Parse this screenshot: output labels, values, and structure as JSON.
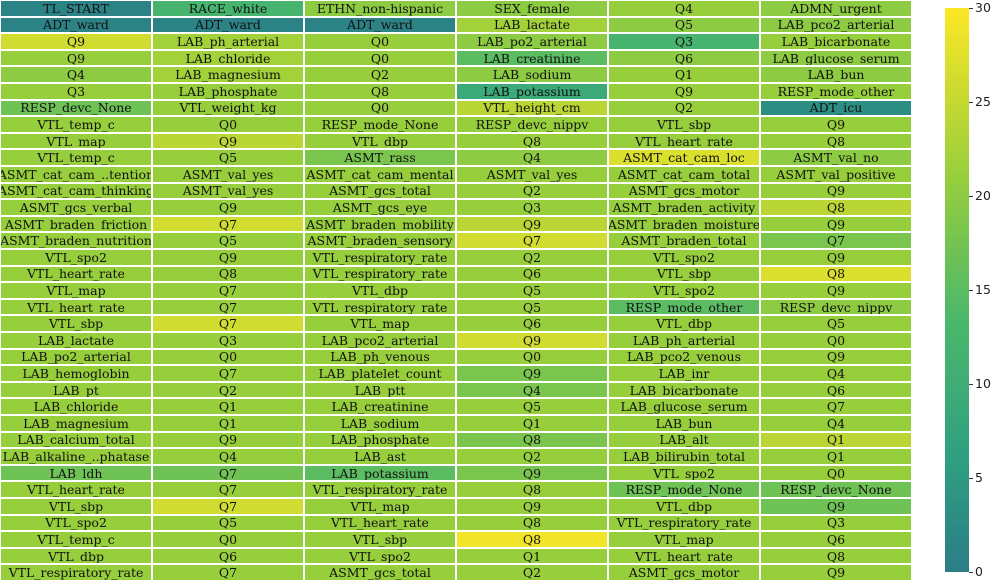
{
  "chart_data": {
    "type": "heatmap",
    "title": "",
    "colormap": "viridis-like (teal to yellow)",
    "colorbar": {
      "min": 0,
      "max": 30,
      "ticks": [
        0,
        5,
        10,
        15,
        20,
        25,
        30
      ]
    },
    "grid": {
      "columns": 6,
      "rows": 35
    },
    "rows": [
      {
        "labels": [
          "TL_START",
          "RACE_white",
          "ETHN_non-hispanic",
          "SEX_female",
          "Q4",
          "ADMN_urgent"
        ],
        "values": [
          1,
          12,
          20,
          20,
          21,
          20
        ]
      },
      {
        "labels": [
          "ADT_ward",
          "ADT_ward",
          "ADT_ward",
          "LAB_lactate",
          "Q5",
          "LAB_pco2_arterial"
        ],
        "values": [
          1,
          1,
          1,
          22,
          20,
          20
        ]
      },
      {
        "labels": [
          "Q9",
          "LAB_ph_arterial",
          "Q0",
          "LAB_po2_arterial",
          "Q3",
          "LAB_bicarbonate"
        ],
        "values": [
          26,
          22,
          21,
          20,
          12,
          21
        ]
      },
      {
        "labels": [
          "Q9",
          "LAB_chloride",
          "Q0",
          "LAB_creatinine",
          "Q6",
          "LAB_glucose_serum"
        ],
        "values": [
          21,
          22,
          21,
          15,
          20,
          20
        ]
      },
      {
        "labels": [
          "Q4",
          "LAB_magnesium",
          "Q2",
          "LAB_sodium",
          "Q1",
          "LAB_bun"
        ],
        "values": [
          20,
          22,
          21,
          20,
          21,
          20
        ]
      },
      {
        "labels": [
          "Q3",
          "LAB_phosphate",
          "Q8",
          "LAB_potassium",
          "Q9",
          "RESP_mode_other"
        ],
        "values": [
          21,
          21,
          21,
          9,
          21,
          21
        ]
      },
      {
        "labels": [
          "RESP_devc_None",
          "VTL_weight_kg",
          "Q0",
          "VTL_height_cm",
          "Q2",
          "ADT_icu"
        ],
        "values": [
          17,
          21,
          21,
          24,
          21,
          3
        ]
      },
      {
        "labels": [
          "VTL_temp_c",
          "Q0",
          "RESP_mode_None",
          "RESP_devc_nippv",
          "VTL_sbp",
          "Q9"
        ],
        "values": [
          21,
          21,
          21,
          21,
          21,
          21
        ]
      },
      {
        "labels": [
          "VTL_map",
          "Q9",
          "VTL_dbp",
          "Q8",
          "VTL_heart_rate",
          "Q8"
        ],
        "values": [
          21,
          24,
          21,
          21,
          21,
          21
        ]
      },
      {
        "labels": [
          "VTL_temp_c",
          "Q5",
          "ASMT_rass",
          "Q4",
          "ASMT_cat_cam_loc",
          "ASMT_val_no"
        ],
        "values": [
          21,
          21,
          18,
          20,
          27,
          20
        ]
      },
      {
        "labels": [
          "ASMT_cat_cam_..tention",
          "ASMT_val_yes",
          "ASMT_cat_cam_mental",
          "ASMT_val_yes",
          "ASMT_cat_cam_total",
          "ASMT_val_positive"
        ],
        "values": [
          21,
          21,
          21,
          21,
          21,
          21
        ]
      },
      {
        "labels": [
          "ASMT_cat_cam_thinking",
          "ASMT_val_yes",
          "ASMT_gcs_total",
          "Q2",
          "ASMT_gcs_motor",
          "Q9"
        ],
        "values": [
          21,
          21,
          21,
          21,
          21,
          21
        ]
      },
      {
        "labels": [
          "ASMT_gcs_verbal",
          "Q9",
          "ASMT_gcs_eye",
          "Q3",
          "ASMT_braden_activity",
          "Q8"
        ],
        "values": [
          21,
          21,
          21,
          21,
          21,
          24
        ]
      },
      {
        "labels": [
          "ASMT_braden_friction",
          "Q7",
          "ASMT_braden_mobility",
          "Q9",
          "ASMT_braden_moisture",
          "Q9"
        ],
        "values": [
          21,
          26,
          21,
          24,
          21,
          21
        ]
      },
      {
        "labels": [
          "ASMT_braden_nutrition",
          "Q5",
          "ASMT_braden_sensory",
          "Q7",
          "ASMT_braden_total",
          "Q7"
        ],
        "values": [
          21,
          21,
          21,
          26,
          21,
          18
        ]
      },
      {
        "labels": [
          "VTL_spo2",
          "Q9",
          "VTL_respiratory_rate",
          "Q2",
          "VTL_spo2",
          "Q9"
        ],
        "values": [
          21,
          21,
          21,
          21,
          21,
          21
        ]
      },
      {
        "labels": [
          "VTL_heart_rate",
          "Q8",
          "VTL_respiratory_rate",
          "Q6",
          "VTL_sbp",
          "Q8"
        ],
        "values": [
          21,
          21,
          21,
          21,
          21,
          27
        ]
      },
      {
        "labels": [
          "VTL_map",
          "Q7",
          "VTL_dbp",
          "Q5",
          "VTL_spo2",
          "Q9"
        ],
        "values": [
          21,
          21,
          21,
          21,
          21,
          21
        ]
      },
      {
        "labels": [
          "VTL_heart_rate",
          "Q7",
          "VTL_respiratory_rate",
          "Q5",
          "RESP_mode_other",
          "RESP_devc_nippv"
        ],
        "values": [
          21,
          21,
          21,
          21,
          15,
          20
        ]
      },
      {
        "labels": [
          "VTL_sbp",
          "Q7",
          "VTL_map",
          "Q6",
          "VTL_dbp",
          "Q5"
        ],
        "values": [
          21,
          26,
          21,
          21,
          21,
          21
        ]
      },
      {
        "labels": [
          "LAB_lactate",
          "Q3",
          "LAB_pco2_arterial",
          "Q9",
          "LAB_ph_arterial",
          "Q0"
        ],
        "values": [
          21,
          21,
          21,
          26,
          21,
          21
        ]
      },
      {
        "labels": [
          "LAB_po2_arterial",
          "Q0",
          "LAB_ph_venous",
          "Q0",
          "LAB_pco2_venous",
          "Q9"
        ],
        "values": [
          21,
          21,
          21,
          21,
          21,
          21
        ]
      },
      {
        "labels": [
          "LAB_hemoglobin",
          "Q7",
          "LAB_platelet_count",
          "Q9",
          "LAB_inr",
          "Q4"
        ],
        "values": [
          21,
          21,
          21,
          18,
          21,
          21
        ]
      },
      {
        "labels": [
          "LAB_pt",
          "Q2",
          "LAB_ptt",
          "Q4",
          "LAB_bicarbonate",
          "Q6"
        ],
        "values": [
          21,
          21,
          21,
          18,
          21,
          21
        ]
      },
      {
        "labels": [
          "LAB_chloride",
          "Q1",
          "LAB_creatinine",
          "Q5",
          "LAB_glucose_serum",
          "Q7"
        ],
        "values": [
          21,
          21,
          21,
          21,
          21,
          21
        ]
      },
      {
        "labels": [
          "LAB_magnesium",
          "Q1",
          "LAB_sodium",
          "Q1",
          "LAB_bun",
          "Q4"
        ],
        "values": [
          21,
          21,
          21,
          21,
          21,
          21
        ]
      },
      {
        "labels": [
          "LAB_calcium_total",
          "Q9",
          "LAB_phosphate",
          "Q8",
          "LAB_alt",
          "Q1"
        ],
        "values": [
          21,
          21,
          21,
          18,
          21,
          24
        ]
      },
      {
        "labels": [
          "LAB_alkaline_..phatase",
          "Q4",
          "LAB_ast",
          "Q2",
          "LAB_bilirubin_total",
          "Q1"
        ],
        "values": [
          21,
          21,
          21,
          21,
          21,
          21
        ]
      },
      {
        "labels": [
          "LAB_ldh",
          "Q7",
          "LAB_potassium",
          "Q9",
          "VTL_spo2",
          "Q0"
        ],
        "values": [
          17,
          17,
          15,
          18,
          21,
          21
        ]
      },
      {
        "labels": [
          "VTL_heart_rate",
          "Q7",
          "VTL_respiratory_rate",
          "Q8",
          "RESP_mode_None",
          "RESP_devc_None"
        ],
        "values": [
          21,
          21,
          21,
          21,
          17,
          17
        ]
      },
      {
        "labels": [
          "VTL_sbp",
          "Q7",
          "VTL_map",
          "Q9",
          "VTL_dbp",
          "Q9"
        ],
        "values": [
          21,
          26,
          21,
          21,
          21,
          17
        ]
      },
      {
        "labels": [
          "VTL_spo2",
          "Q5",
          "VTL_heart_rate",
          "Q8",
          "VTL_respiratory_rate",
          "Q3"
        ],
        "values": [
          21,
          21,
          21,
          21,
          21,
          21
        ]
      },
      {
        "labels": [
          "VTL_temp_c",
          "Q0",
          "VTL_sbp",
          "Q8",
          "VTL_map",
          "Q6"
        ],
        "values": [
          21,
          21,
          21,
          29,
          21,
          21
        ]
      },
      {
        "labels": [
          "VTL_dbp",
          "Q6",
          "VTL_spo2",
          "Q1",
          "VTL_heart_rate",
          "Q8"
        ],
        "values": [
          21,
          21,
          21,
          21,
          21,
          21
        ]
      },
      {
        "labels": [
          "VTL_respiratory_rate",
          "Q7",
          "ASMT_gcs_total",
          "Q2",
          "ASMT_gcs_motor",
          "Q9"
        ],
        "values": [
          21,
          21,
          21,
          21,
          21,
          21
        ]
      }
    ]
  }
}
